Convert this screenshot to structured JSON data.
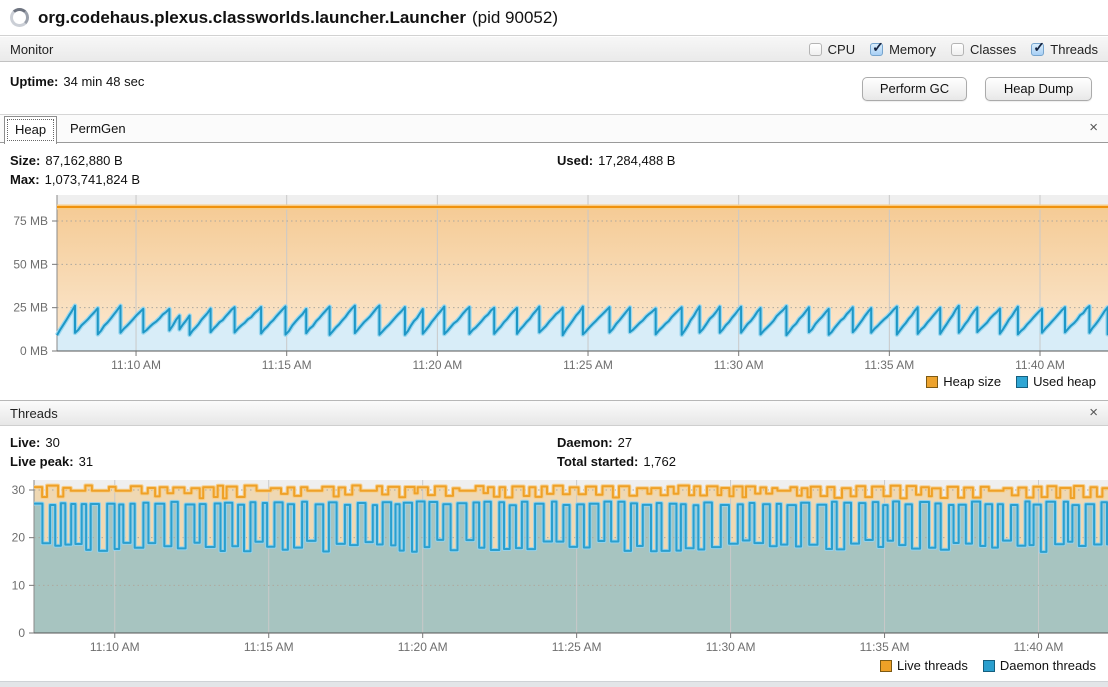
{
  "window": {
    "title": "org.codehaus.plexus.classworlds.launcher.Launcher",
    "pid_suffix": "(pid 90052)"
  },
  "toolbar": {
    "label": "Monitor",
    "checkboxes": [
      {
        "label": "CPU",
        "checked": false
      },
      {
        "label": "Memory",
        "checked": true
      },
      {
        "label": "Classes",
        "checked": false
      },
      {
        "label": "Threads",
        "checked": true
      }
    ]
  },
  "overview": {
    "uptime_label": "Uptime:",
    "uptime_value": "34 min 48 sec",
    "gc_button": "Perform GC",
    "heap_dump_button": "Heap Dump"
  },
  "memory_panel": {
    "tabs": [
      {
        "label": "Heap",
        "selected": true
      },
      {
        "label": "PermGen",
        "selected": false
      }
    ],
    "close_icon": "×",
    "stats_left": [
      {
        "label": "Size:",
        "value": "87,162,880 B"
      },
      {
        "label": "Max:",
        "value": "1,073,741,824 B"
      }
    ],
    "stats_right": [
      {
        "label": "Used:",
        "value": "17,284,488 B"
      }
    ]
  },
  "threads_panel": {
    "title": "Threads",
    "close_icon": "×",
    "stats_left": [
      {
        "label": "Live:",
        "value": "30"
      },
      {
        "label": "Live peak:",
        "value": "31"
      }
    ],
    "stats_right": [
      {
        "label": "Daemon:",
        "value": "27"
      },
      {
        "label": "Total started:",
        "value": "1,762"
      }
    ]
  },
  "chart_data": [
    {
      "id": "heap",
      "type": "area",
      "title": "Heap",
      "x_ticks": [
        "11:10 AM",
        "11:15 AM",
        "11:20 AM",
        "11:25 AM",
        "11:30 AM",
        "11:35 AM",
        "11:40 AM"
      ],
      "y_ticks": [
        {
          "label": "0 MB",
          "value": 0
        },
        {
          "label": "25 MB",
          "value": 25
        },
        {
          "label": "50 MB",
          "value": 50
        },
        {
          "label": "75 MB",
          "value": 75
        }
      ],
      "ylabel": "MB",
      "y_max": 90,
      "grid": true,
      "legend_position": "bottom-right",
      "series": [
        {
          "name": "Heap size",
          "color": "#EDA32E",
          "stroke": "#F0920C",
          "halo": "#F8CC85",
          "fill_top": "#F5CB95",
          "fill_bottom": "#FBE9D3",
          "pattern": "constant",
          "value_mb": 83.1
        },
        {
          "name": "Used heap",
          "color": "#2FA6D4",
          "stroke": "#1E97C6",
          "halo": "#9AD7EF",
          "fill": "#D8EDF8",
          "pattern": "gc-sawtooth",
          "min_mb": 9.5,
          "max_mb": 25,
          "teeth": 47,
          "current_mb": 16.5
        }
      ]
    },
    {
      "id": "threads",
      "type": "line",
      "title": "Threads",
      "x_ticks": [
        "11:10 AM",
        "11:15 AM",
        "11:20 AM",
        "11:25 AM",
        "11:30 AM",
        "11:35 AM",
        "11:40 AM"
      ],
      "y_ticks": [
        {
          "label": "0",
          "value": 0
        },
        {
          "label": "10",
          "value": 10
        },
        {
          "label": "20",
          "value": 20
        },
        {
          "label": "30",
          "value": 30
        }
      ],
      "y_max": 32.1,
      "grid": true,
      "legend_position": "bottom-right",
      "series": [
        {
          "name": "Live threads",
          "color": "#EFA127",
          "stroke": "#EFA127",
          "halo": "#F6CF8F",
          "fill": "rgba(239,161,39,0.30)",
          "pattern": "square",
          "high": 31,
          "low": 28
        },
        {
          "name": "Daemon threads",
          "color": "#2A9FCE",
          "stroke": "#2A9FCE",
          "halo": "#93D2EC",
          "fill": "rgba(60,168,213,0.40)",
          "pattern": "square",
          "high": 27,
          "low": 17
        }
      ]
    }
  ]
}
